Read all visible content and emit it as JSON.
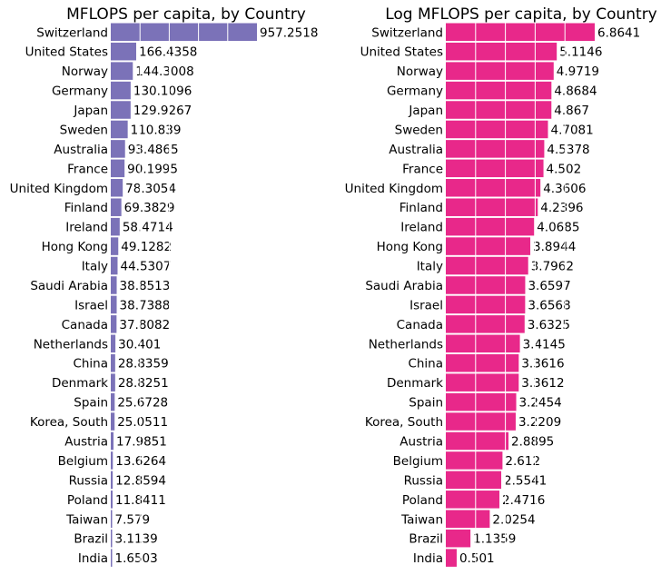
{
  "chart_data": [
    {
      "type": "bar",
      "orientation": "horizontal",
      "title": "MFLOPS per capita, by Country",
      "xlabel": "",
      "ylabel": "",
      "grid": false,
      "color": "#7b72b8",
      "categories": [
        "Switzerland",
        "United States",
        "Norway",
        "Germany",
        "Japan",
        "Sweden",
        "Australia",
        "France",
        "United Kingdom",
        "Finland",
        "Ireland",
        "Hong Kong",
        "Italy",
        "Saudi Arabia",
        "Israel",
        "Canada",
        "Netherlands",
        "China",
        "Denmark",
        "Spain",
        "Korea, South",
        "Austria",
        "Belgium",
        "Russia",
        "Poland",
        "Taiwan",
        "Brazil",
        "India"
      ],
      "values": [
        957.2518,
        166.4358,
        144.3008,
        130.1096,
        129.9267,
        110.839,
        93.4865,
        90.1995,
        78.3054,
        69.3829,
        58.4714,
        49.1282,
        44.5307,
        38.8513,
        38.7388,
        37.8082,
        30.401,
        28.8359,
        28.8251,
        25.6728,
        25.0511,
        17.9851,
        13.6264,
        12.8594,
        11.8411,
        7.579,
        3.1139,
        1.6503
      ],
      "value_labels": [
        "957.2518",
        "166.4358",
        "144.3008",
        "130.1096",
        "129.9267",
        "110.839",
        "93.4865",
        "90.1995",
        "78.3054",
        "69.3829",
        "58.4714",
        "49.1282",
        "44.5307",
        "38.8513",
        "38.7388",
        "37.8082",
        "30.401",
        "28.8359",
        "28.8251",
        "25.6728",
        "25.0511",
        "17.9851",
        "13.6264",
        "12.8594",
        "11.8411",
        "7.579",
        "3.1139",
        "1.6503"
      ],
      "xlim": [
        0,
        957.2518
      ]
    },
    {
      "type": "bar",
      "orientation": "horizontal",
      "title": "Log MFLOPS per capita, by Country",
      "xlabel": "",
      "ylabel": "",
      "grid": false,
      "color": "#e8288a",
      "categories": [
        "Switzerland",
        "United States",
        "Norway",
        "Germany",
        "Japan",
        "Sweden",
        "Australia",
        "France",
        "United Kingdom",
        "Finland",
        "Ireland",
        "Hong Kong",
        "Italy",
        "Saudi Arabia",
        "Israel",
        "Canada",
        "Netherlands",
        "China",
        "Denmark",
        "Spain",
        "Korea, South",
        "Austria",
        "Belgium",
        "Russia",
        "Poland",
        "Taiwan",
        "Brazil",
        "India"
      ],
      "values": [
        6.8641,
        5.1146,
        4.9719,
        4.8684,
        4.867,
        4.7081,
        4.5378,
        4.502,
        4.3606,
        4.2396,
        4.0685,
        3.8944,
        3.7962,
        3.6597,
        3.6568,
        3.6325,
        3.4145,
        3.3616,
        3.3612,
        3.2454,
        3.2209,
        2.8895,
        2.612,
        2.5541,
        2.4716,
        2.0254,
        1.1359,
        0.501
      ],
      "value_labels": [
        "6.8641",
        "5.1146",
        "4.9719",
        "4.8684",
        "4.867",
        "4.7081",
        "4.5378",
        "4.502",
        "4.3606",
        "4.2396",
        "4.0685",
        "3.8944",
        "3.7962",
        "3.6597",
        "3.6568",
        "3.6325",
        "3.4145",
        "3.3616",
        "3.3612",
        "3.2454",
        "3.2209",
        "2.8895",
        "2.612",
        "2.5541",
        "2.4716",
        "2.0254",
        "1.1359",
        "0.501"
      ],
      "xlim": [
        0,
        6.8641
      ]
    }
  ]
}
